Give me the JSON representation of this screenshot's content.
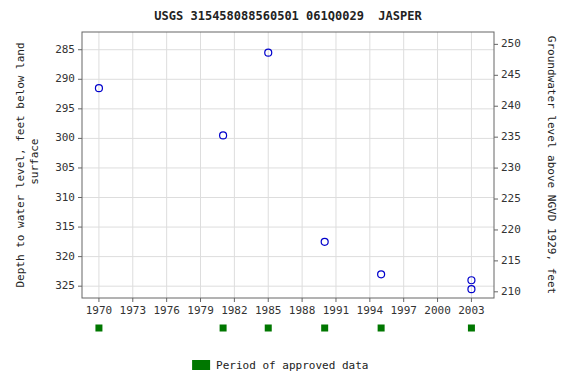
{
  "chart_data": {
    "type": "scatter",
    "title": "USGS 315458088560501 061Q0029  JASPER",
    "ylabel": "Depth to water level, feet below land\n surface",
    "y2label": "Groundwater level above NGVD 1929, feet",
    "xlim": [
      1968.5,
      2005
    ],
    "xticks": [
      1970,
      1973,
      1976,
      1979,
      1982,
      1985,
      1988,
      1991,
      1994,
      1997,
      2000,
      2003
    ],
    "ylim": [
      327,
      282
    ],
    "yticks": [
      285,
      290,
      295,
      300,
      305,
      310,
      315,
      320,
      325
    ],
    "y2lim": [
      209,
      252
    ],
    "y2ticks": [
      250,
      245,
      240,
      235,
      230,
      225,
      220,
      215,
      210
    ],
    "grid": true,
    "legend": "bottom",
    "series": [
      {
        "type": "scatter",
        "marker": "circle",
        "color": "#0000cc",
        "x": [
          1970,
          1981,
          1985,
          1990,
          1995,
          2003,
          2003
        ],
        "values": [
          291.5,
          299.5,
          285.5,
          317.5,
          323,
          324,
          325.5
        ]
      },
      {
        "type": "rug",
        "marker": "square",
        "color": "#007700",
        "name": "Period of approved data",
        "x": [
          1970,
          1981,
          1985,
          1990,
          1995,
          2003
        ]
      }
    ]
  }
}
